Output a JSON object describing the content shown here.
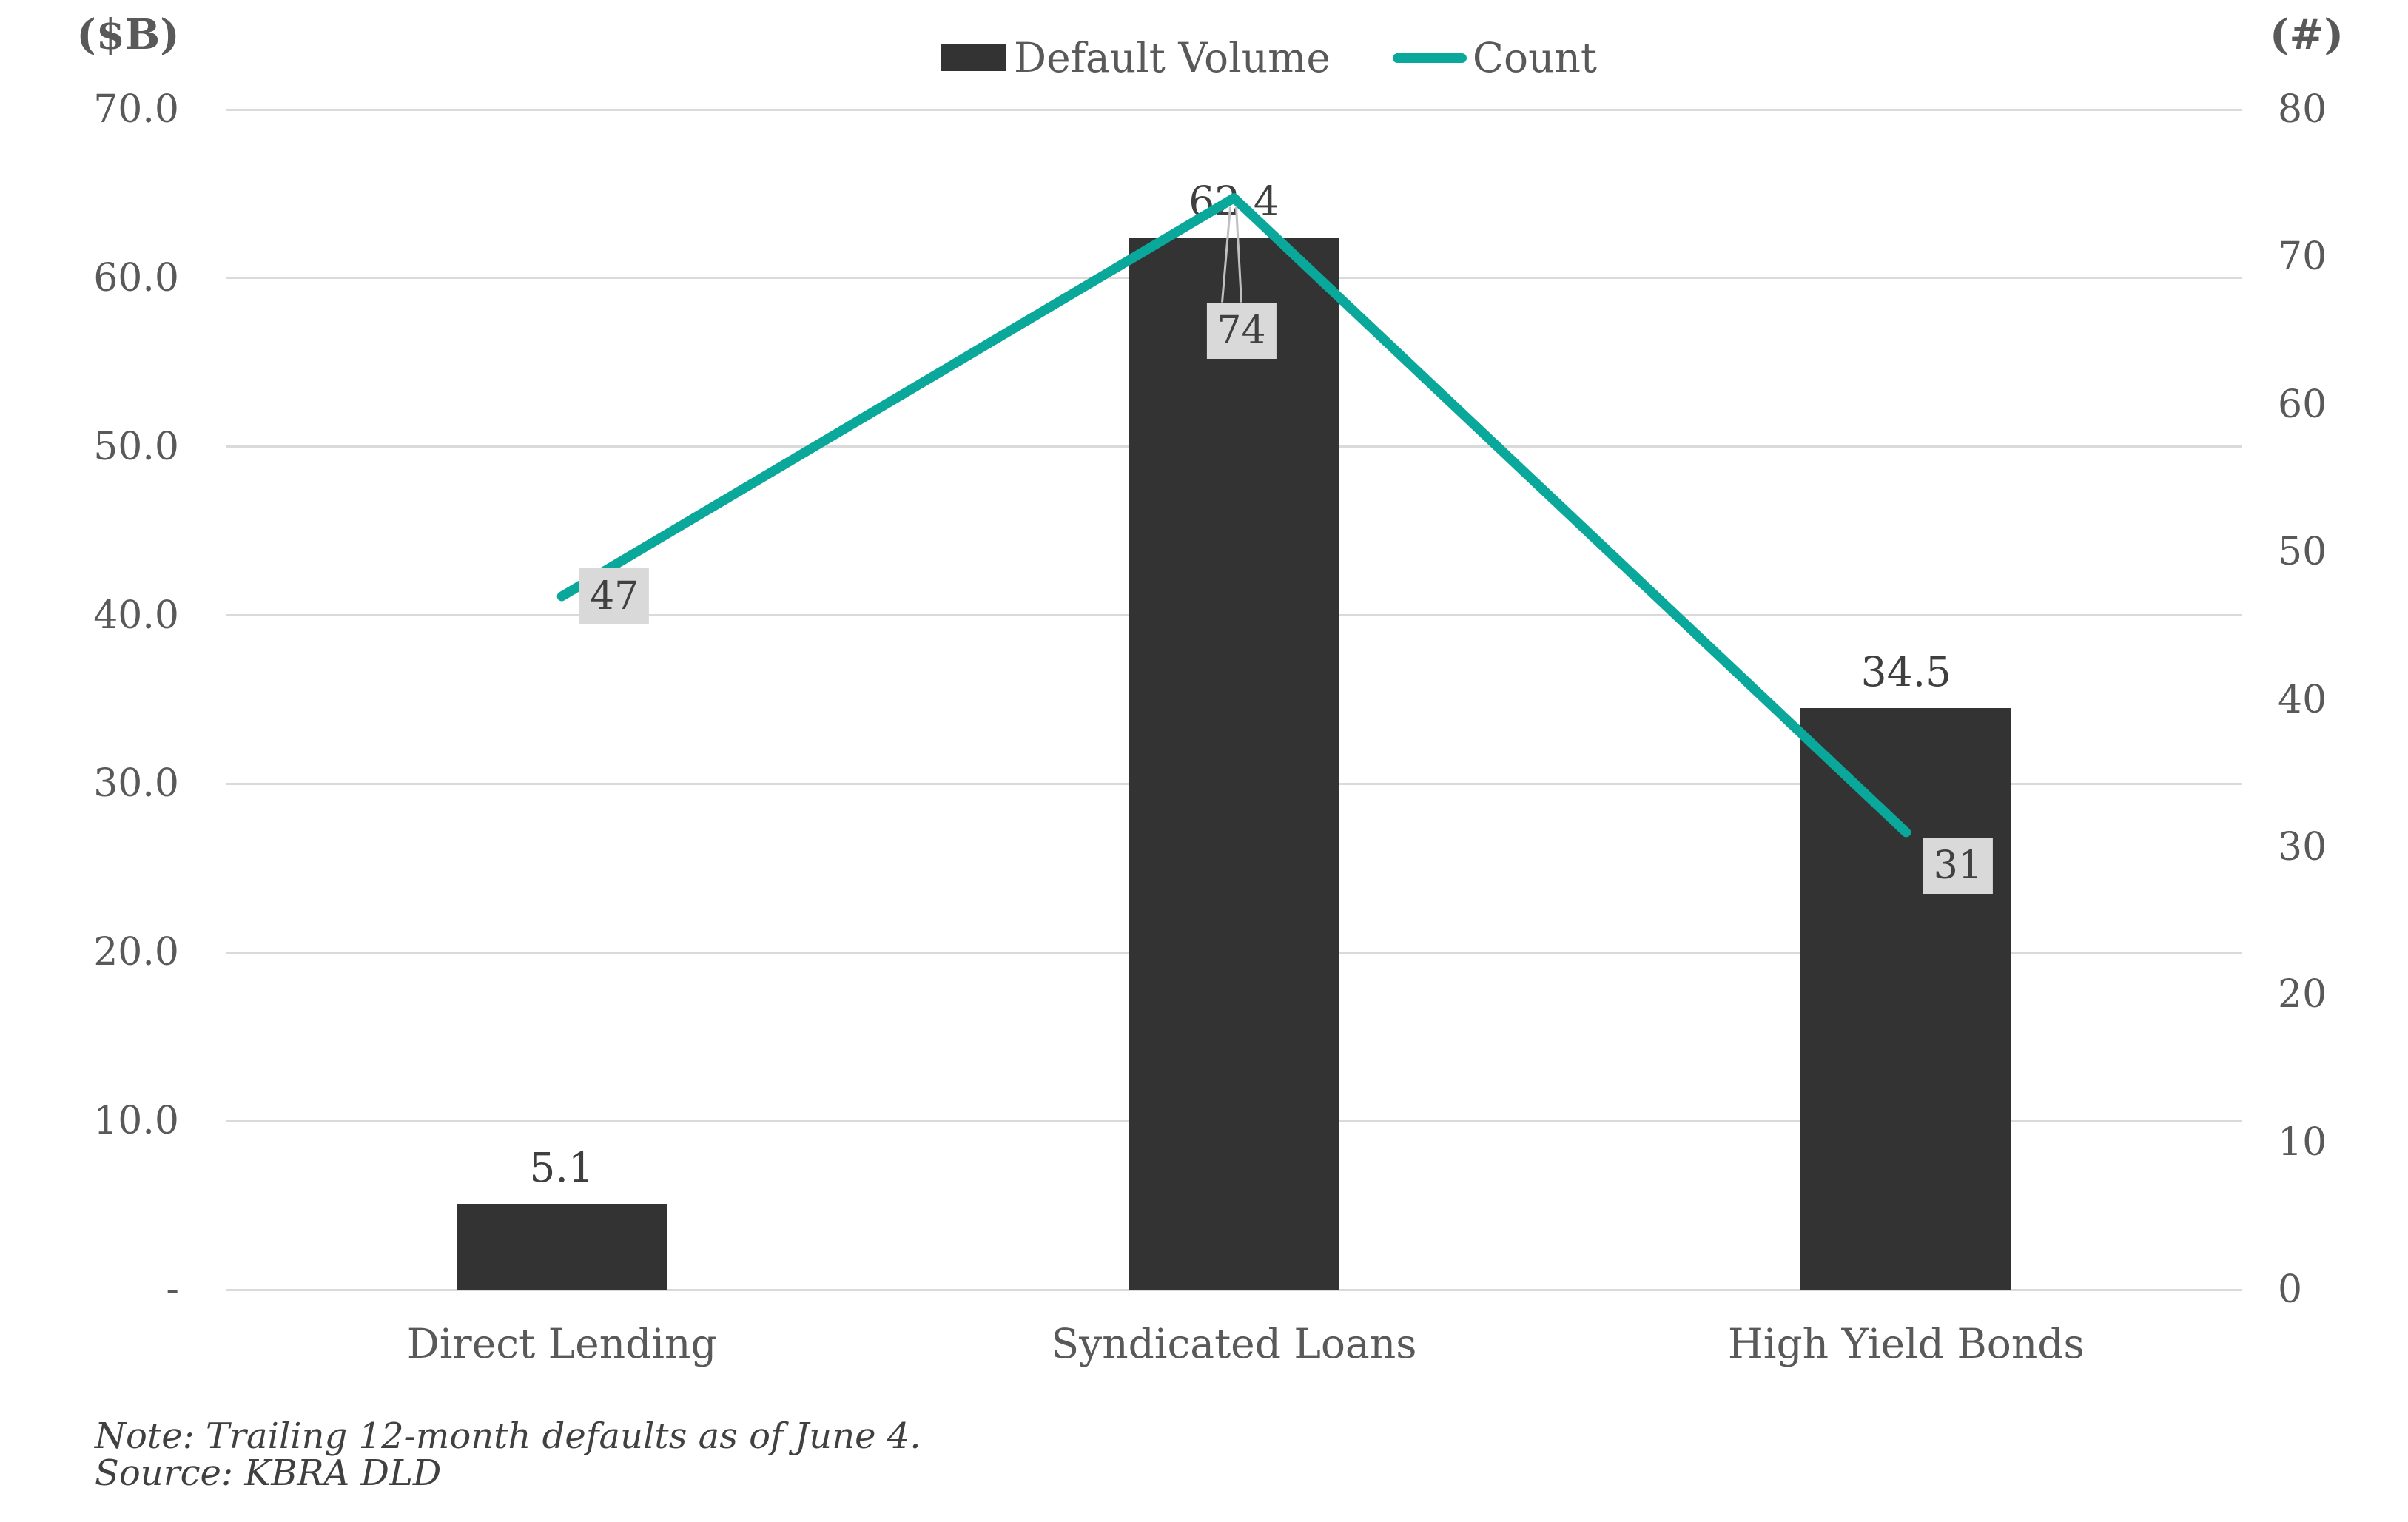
{
  "chart_data": {
    "type": "bar-line-combo",
    "categories": [
      "Direct Lending",
      "Syndicated Loans",
      "High Yield Bonds"
    ],
    "series": [
      {
        "name": "Default Volume",
        "type": "bar",
        "axis": "left",
        "values": [
          5.1,
          62.4,
          34.5
        ],
        "value_labels": [
          "5.1",
          "62.4",
          "34.5"
        ]
      },
      {
        "name": "Count",
        "type": "line",
        "axis": "right",
        "values": [
          47,
          74,
          31
        ],
        "value_labels": [
          "47",
          "74",
          "31"
        ]
      }
    ],
    "left_axis": {
      "title": "($B)",
      "min": 0,
      "max": 70,
      "tick_step": 10,
      "tick_labels": [
        "-",
        "10.0",
        "20.0",
        "30.0",
        "40.0",
        "50.0",
        "60.0",
        "70.0"
      ]
    },
    "right_axis": {
      "title": "(#)",
      "min": 0,
      "max": 80,
      "tick_step": 10,
      "tick_labels": [
        "0",
        "10",
        "20",
        "30",
        "40",
        "50",
        "60",
        "70",
        "80"
      ]
    },
    "grid": true,
    "legend_position": "top-center",
    "note_lines": [
      "Note: Trailing 12-month defaults as of June 4.",
      "Source: KBRA DLD"
    ]
  },
  "colors": {
    "bar": "#333333",
    "line": "#0aa89b",
    "gridline": "#dadada",
    "axis_text": "#595959",
    "value_label_text": "#3f3f3f",
    "note_text": "#404040",
    "count_box_bg": "#d9d9d9",
    "count_box_text": "#404040",
    "leader_line": "#bfbfbf",
    "background": "#ffffff"
  }
}
